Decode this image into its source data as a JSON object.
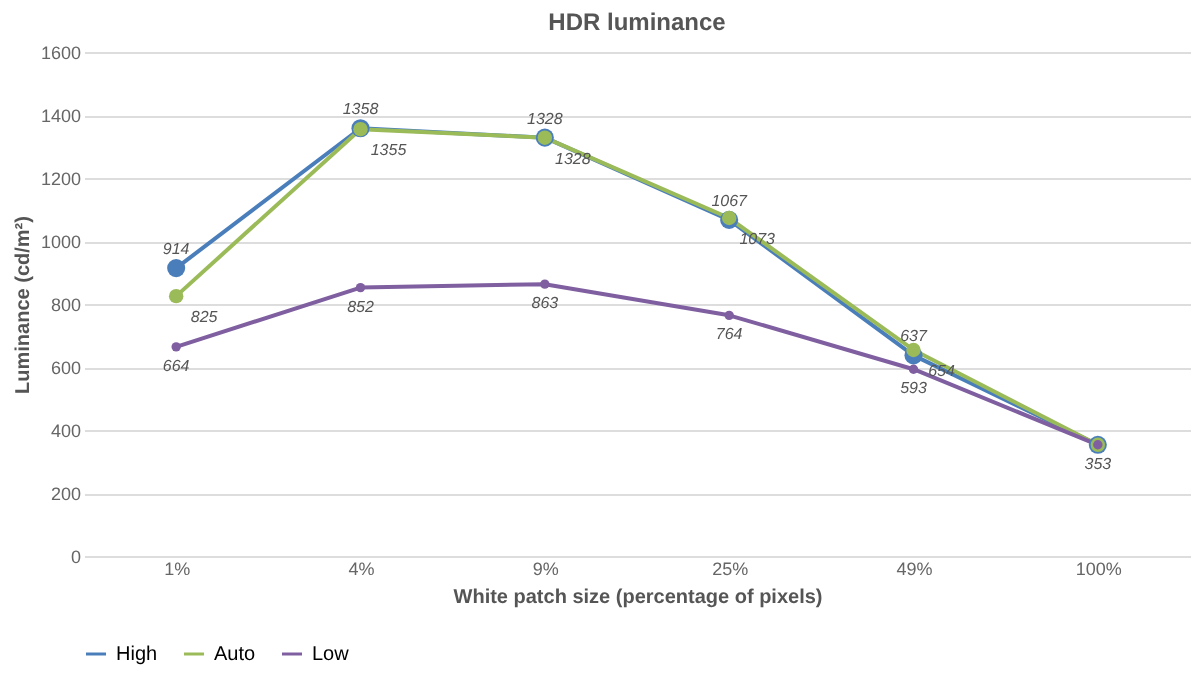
{
  "chart_data": {
    "type": "line",
    "title": "HDR luminance",
    "xlabel": "White patch size (percentage of pixels)",
    "ylabel": "Luminance (cd/m²)",
    "categories": [
      "1%",
      "4%",
      "9%",
      "25%",
      "49%",
      "100%"
    ],
    "series": [
      {
        "name": "High",
        "color": "#4a7ebb",
        "values": [
          914,
          1358,
          1328,
          1067,
          637,
          353
        ],
        "value_labels": [
          "914",
          "1358",
          "1328",
          "1067",
          "637",
          null
        ]
      },
      {
        "name": "Auto",
        "color": "#9bbb59",
        "values": [
          825,
          1355,
          1328,
          1073,
          654,
          353
        ],
        "value_labels": [
          "825",
          "1355",
          "1328",
          "1073",
          "654",
          null
        ]
      },
      {
        "name": "Low",
        "color": "#7f5fa0",
        "values": [
          664,
          852,
          863,
          764,
          593,
          353
        ],
        "value_labels": [
          "664",
          "852",
          "863",
          "764",
          "593",
          "353"
        ]
      }
    ],
    "ylim": [
      0,
      1600
    ],
    "yticks": [
      0,
      200,
      400,
      600,
      800,
      1000,
      1200,
      1400,
      1600
    ],
    "grid": "y",
    "legend": "bottom",
    "marker": "circle",
    "line_style": "solid"
  }
}
